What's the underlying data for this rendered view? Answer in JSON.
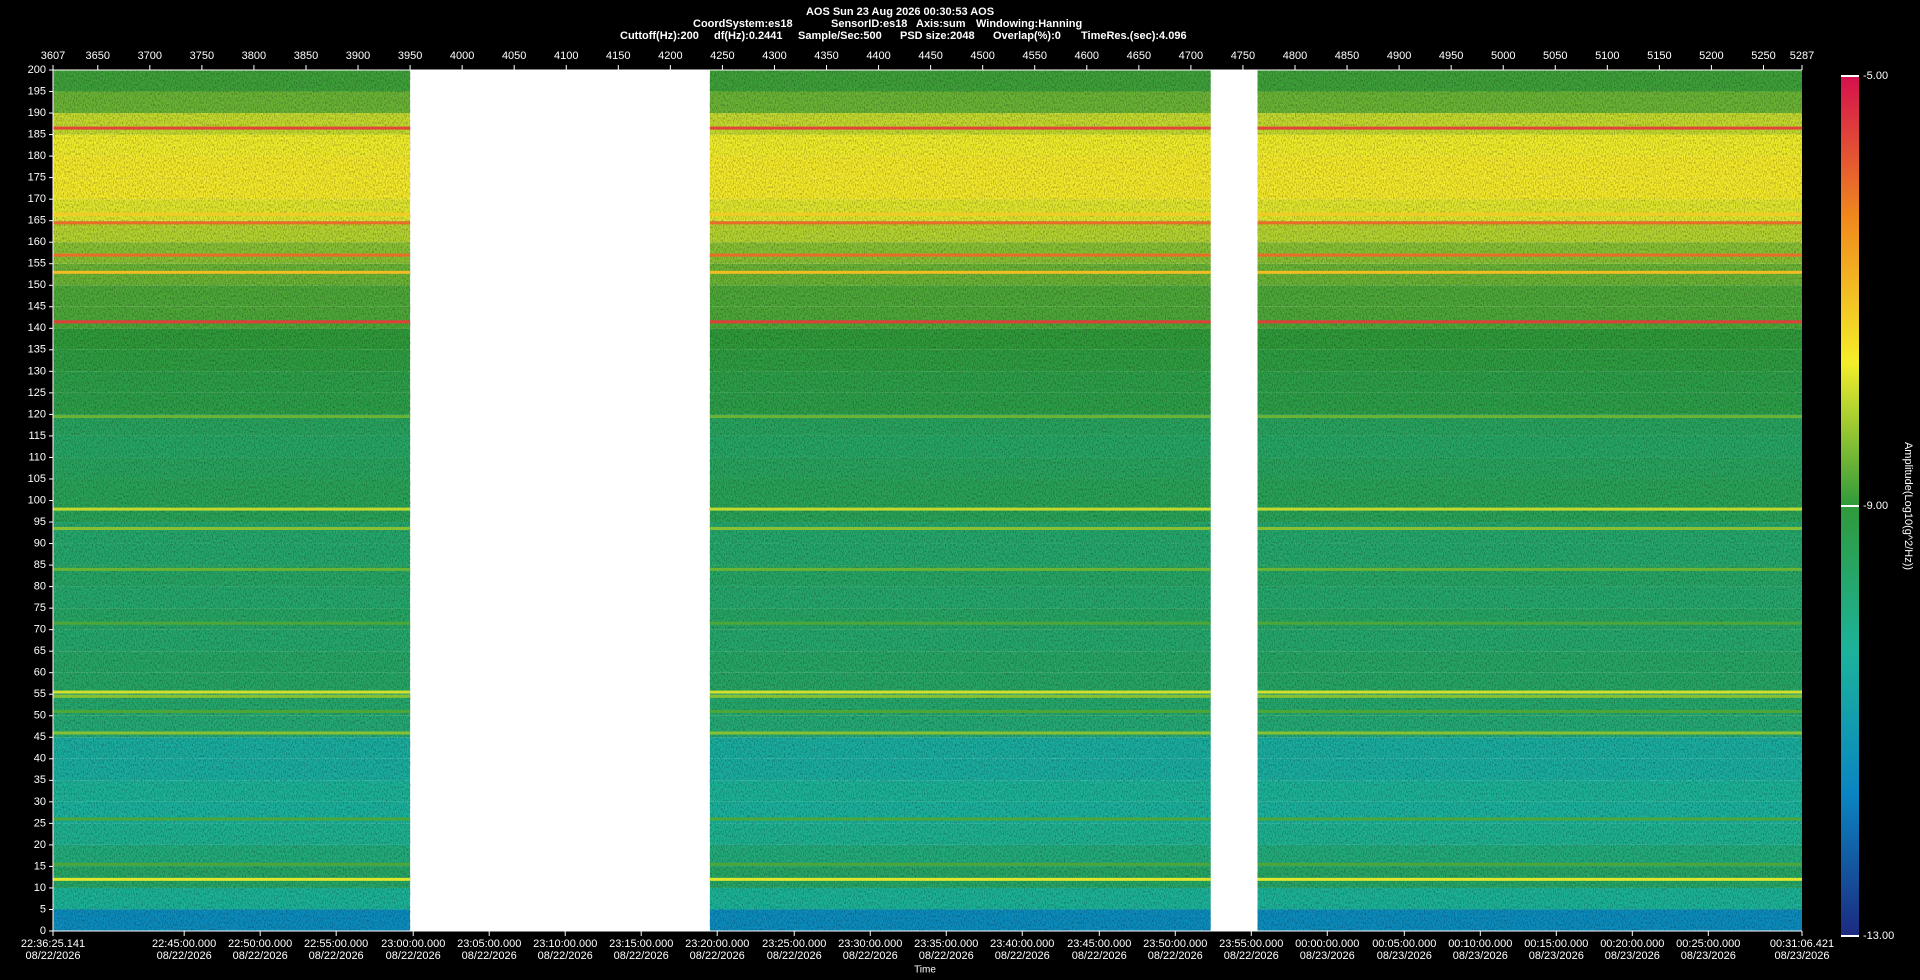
{
  "chart_data": {
    "type": "spectrogram",
    "title": "AOS  Sun 23 Aug 2026 00:30:53  AOS",
    "info": [
      [
        "CoordSystem:es18",
        "SensorID:es18",
        "Axis:sum",
        "Windowing:Hanning"
      ],
      [
        "Cuttoff(Hz):200",
        "df(Hz):0.2441",
        "Sample/Sec:500",
        "PSD size:2048",
        "Overlap(%):0",
        "TimeRes.(sec):4.096"
      ]
    ],
    "x_label": "Time",
    "colorbar_label": "Amplitude(Log10(g^2/Hz))",
    "xlim": [
      3607,
      5287
    ],
    "xticks": [
      3607,
      3650,
      3700,
      3750,
      3800,
      3850,
      3900,
      3950,
      4000,
      4050,
      4100,
      4150,
      4200,
      4250,
      4300,
      4350,
      4400,
      4450,
      4500,
      4550,
      4600,
      4650,
      4700,
      4750,
      4800,
      4850,
      4900,
      4950,
      5000,
      5050,
      5100,
      5150,
      5200,
      5250,
      5287
    ],
    "time_ticks": [
      {
        "value": 3607,
        "label": "22:36:25.141",
        "date": "08/22/2026"
      },
      {
        "value": 3733,
        "label": "22:45:00.000",
        "date": "08/22/2026"
      },
      {
        "value": 3806,
        "label": "22:50:00.000",
        "date": "08/22/2026"
      },
      {
        "value": 3879,
        "label": "22:55:00.000",
        "date": "08/22/2026"
      },
      {
        "value": 3953,
        "label": "23:00:00.000",
        "date": "08/22/2026"
      },
      {
        "value": 4026,
        "label": "23:05:00.000",
        "date": "08/22/2026"
      },
      {
        "value": 4099,
        "label": "23:10:00.000",
        "date": "08/22/2026"
      },
      {
        "value": 4172,
        "label": "23:15:00.000",
        "date": "08/22/2026"
      },
      {
        "value": 4245,
        "label": "23:20:00.000",
        "date": "08/22/2026"
      },
      {
        "value": 4319,
        "label": "23:25:00.000",
        "date": "08/22/2026"
      },
      {
        "value": 4392,
        "label": "23:30:00.000",
        "date": "08/22/2026"
      },
      {
        "value": 4465,
        "label": "23:35:00.000",
        "date": "08/22/2026"
      },
      {
        "value": 4538,
        "label": "23:40:00.000",
        "date": "08/22/2026"
      },
      {
        "value": 4612,
        "label": "23:45:00.000",
        "date": "08/22/2026"
      },
      {
        "value": 4685,
        "label": "23:50:00.000",
        "date": "08/22/2026"
      },
      {
        "value": 4758,
        "label": "23:55:00.000",
        "date": "08/22/2026"
      },
      {
        "value": 4831,
        "label": "00:00:00.000",
        "date": "08/23/2026"
      },
      {
        "value": 4905,
        "label": "00:05:00.000",
        "date": "08/23/2026"
      },
      {
        "value": 4978,
        "label": "00:10:00.000",
        "date": "08/23/2026"
      },
      {
        "value": 5051,
        "label": "00:15:00.000",
        "date": "08/23/2026"
      },
      {
        "value": 5124,
        "label": "00:20:00.000",
        "date": "08/23/2026"
      },
      {
        "value": 5197,
        "label": "00:25:00.000",
        "date": "08/23/2026"
      },
      {
        "value": 5287,
        "label": "00:31:06.421",
        "date": "08/23/2026"
      }
    ],
    "ylim": [
      0,
      200
    ],
    "yticks": [
      0,
      5,
      10,
      15,
      20,
      25,
      30,
      35,
      40,
      45,
      50,
      55,
      60,
      65,
      70,
      75,
      80,
      85,
      90,
      95,
      100,
      105,
      110,
      115,
      120,
      125,
      130,
      135,
      140,
      145,
      150,
      155,
      160,
      165,
      170,
      175,
      180,
      185,
      190,
      195,
      200
    ],
    "zlim": [
      -13,
      -5
    ],
    "zticks": [
      {
        "value": -5,
        "label": "-5.00"
      },
      {
        "value": -9,
        "label": "-9.00"
      },
      {
        "value": -13,
        "label": "-13.00"
      }
    ],
    "colorscale": [
      "#1c2a80",
      "#0a86c2",
      "#1cb39a",
      "#2f9a3a",
      "#f4ee2a",
      "#f08a1c",
      "#d4104e"
    ],
    "segments": [
      [
        3607,
        3950
      ],
      [
        4238,
        4719
      ],
      [
        4764,
        5287
      ]
    ],
    "frequency_bins": [
      0,
      5,
      10,
      15,
      20,
      25,
      30,
      35,
      40,
      45,
      50,
      55,
      60,
      65,
      70,
      75,
      80,
      85,
      90,
      95,
      100,
      105,
      110,
      115,
      120,
      125,
      130,
      135,
      140,
      145,
      150,
      155,
      160,
      165,
      170,
      175,
      180,
      185,
      190,
      195,
      200
    ],
    "amplitude": [
      -11.5,
      -10.3,
      -9.6,
      -9.9,
      -10.2,
      -10.4,
      -10.3,
      -10.5,
      -10.5,
      -9.8,
      -9.7,
      -9.6,
      -9.6,
      -9.7,
      -9.6,
      -9.7,
      -9.6,
      -9.7,
      -9.7,
      -9.4,
      -9.4,
      -9.5,
      -9.6,
      -9.5,
      -9.2,
      -9.2,
      -9.1,
      -9.0,
      -8.8,
      -8.8,
      -8.6,
      -8.4,
      -8.1,
      -7.8,
      -7.6,
      -7.6,
      -7.7,
      -8.0,
      -8.6,
      -8.9
    ],
    "lines": [
      {
        "frequency": 186.5,
        "amplitude": -5.6
      },
      {
        "frequency": 166.5,
        "amplitude": -7.2
      },
      {
        "frequency": 164.5,
        "amplitude": -6.0
      },
      {
        "frequency": 157,
        "amplitude": -6.0
      },
      {
        "frequency": 153,
        "amplitude": -7.0
      },
      {
        "frequency": 141.5,
        "amplitude": -5.5
      },
      {
        "frequency": 119.5,
        "amplitude": -8.6
      },
      {
        "frequency": 98,
        "amplitude": -8.0
      },
      {
        "frequency": 93.5,
        "amplitude": -8.4
      },
      {
        "frequency": 84,
        "amplitude": -8.6
      },
      {
        "frequency": 71.5,
        "amplitude": -8.8
      },
      {
        "frequency": 55.5,
        "amplitude": -7.9
      },
      {
        "frequency": 54.5,
        "amplitude": -8.4
      },
      {
        "frequency": 51,
        "amplitude": -8.8
      },
      {
        "frequency": 46,
        "amplitude": -8.4
      },
      {
        "frequency": 26,
        "amplitude": -8.8
      },
      {
        "frequency": 15.5,
        "amplitude": -8.8
      },
      {
        "frequency": 12,
        "amplitude": -7.8
      }
    ]
  }
}
